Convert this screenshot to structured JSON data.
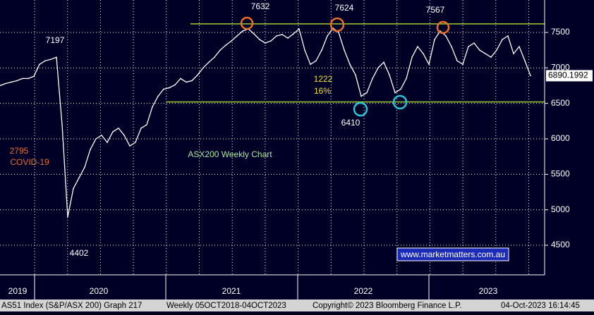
{
  "chart_data": {
    "type": "line",
    "title": "ASX200 Weekly Chart",
    "values": [
      6750,
      6780,
      6800,
      6820,
      6850,
      6850,
      6880,
      7050,
      7100,
      7120,
      7150,
      6200,
      4900,
      5300,
      5450,
      5600,
      5850,
      6000,
      6050,
      5950,
      6100,
      6150,
      6050,
      5900,
      5950,
      6150,
      6200,
      6450,
      6600,
      6700,
      6720,
      6760,
      6850,
      6800,
      6820,
      6900,
      7000,
      7080,
      7150,
      7250,
      7320,
      7380,
      7450,
      7520,
      7550,
      7480,
      7400,
      7350,
      7380,
      7450,
      7470,
      7420,
      7480,
      7550,
      7250,
      7050,
      7100,
      7250,
      7450,
      7560,
      7500,
      7250,
      7050,
      6900,
      6600,
      6650,
      6850,
      7000,
      7080,
      6900,
      6650,
      6700,
      6850,
      7150,
      7300,
      7200,
      7050,
      7400,
      7520,
      7450,
      7300,
      7100,
      7050,
      7300,
      7350,
      7250,
      7200,
      7150,
      7250,
      7400,
      7450,
      7200,
      7300,
      7100,
      6890
    ],
    "color": "#ffffff",
    "ylim": [
      4083,
      7957
    ],
    "yticks": [
      4500,
      5000,
      5500,
      6000,
      6500,
      7000,
      7500
    ],
    "grid": true,
    "last_price": "6890.1992",
    "xlabels": [
      "2019",
      "2020",
      "2021",
      "2022",
      "2023"
    ],
    "levels": [
      {
        "value": 7620,
        "color": "#9acd32"
      },
      {
        "value": 6520,
        "color": "#9acd32"
      }
    ],
    "annotations": [
      "7632",
      "7624",
      "7567",
      "7197",
      "4402",
      "6410",
      "1222",
      "16%",
      "2795",
      "COVID-19"
    ],
    "watermark": "www.marketmatters.com.au",
    "footer": [
      "AS51 Index (S&P/ASX 200) Graph 217",
      "Weekly 05OCT2018-04OCT2023",
      "Copyright© 2023 Bloomberg Finance L.P.",
      "04-Oct-2023 16:14:45"
    ]
  }
}
